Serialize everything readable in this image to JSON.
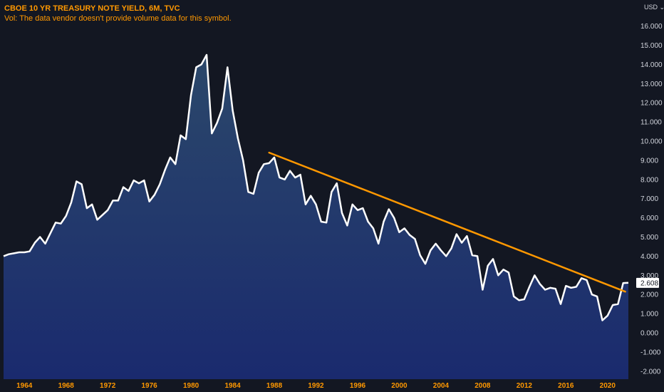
{
  "header": {
    "title": "CBOE 10 YR TREASURY NOTE YIELD, 6M, TVC",
    "volume_note": "Vol: The data vendor doesn't provide volume data for this symbol."
  },
  "price_scale": {
    "currency": "USD",
    "last_value_label": "2.608"
  },
  "colors": {
    "background": "#131722",
    "line": "#ffffff",
    "trendline": "#ff9800",
    "area_top": "#2c4a6e",
    "area_bottom": "#1a2a6e",
    "axis_text": "#d1d4dc",
    "time_labels": "#ff9800"
  },
  "chart_data": {
    "type": "area",
    "title": "CBOE 10 YR TREASURY NOTE YIELD, 6M, TVC",
    "xlabel": "",
    "ylabel": "",
    "ylim": [
      -2.25,
      17.1
    ],
    "xlim": [
      1962.0,
      2022.0
    ],
    "y_ticks": [
      "16.000",
      "15.000",
      "14.000",
      "13.000",
      "12.000",
      "11.000",
      "10.000",
      "9.000",
      "8.000",
      "7.000",
      "6.000",
      "5.000",
      "4.000",
      "3.000",
      "2.000",
      "1.000",
      "0.000",
      "-1.000",
      "-2.000"
    ],
    "x_ticks": [
      "1964",
      "1968",
      "1972",
      "1976",
      "1980",
      "1984",
      "1988",
      "1992",
      "1996",
      "2000",
      "2004",
      "2008",
      "2012",
      "2016",
      "2020"
    ],
    "grid": false,
    "series": [
      {
        "x": [
          1962.0,
          1962.5,
          1963.0,
          1963.5,
          1964.0,
          1964.5,
          1965.0,
          1965.5,
          1966.0,
          1966.5,
          1967.0,
          1967.5,
          1968.0,
          1968.5,
          1969.0,
          1969.5,
          1970.0,
          1970.5,
          1971.0,
          1971.5,
          1972.0,
          1972.5,
          1973.0,
          1973.5,
          1974.0,
          1974.5,
          1975.0,
          1975.5,
          1976.0,
          1976.5,
          1977.0,
          1977.5,
          1978.0,
          1978.5,
          1979.0,
          1979.5,
          1980.0,
          1980.5,
          1981.0,
          1981.5,
          1982.0,
          1982.5,
          1983.0,
          1983.5,
          1984.0,
          1984.5,
          1985.0,
          1985.5,
          1986.0,
          1986.5,
          1987.0,
          1987.5,
          1988.0,
          1988.5,
          1989.0,
          1989.5,
          1990.0,
          1990.5,
          1991.0,
          1991.5,
          1992.0,
          1992.5,
          1993.0,
          1993.5,
          1994.0,
          1994.5,
          1995.0,
          1995.5,
          1996.0,
          1996.5,
          1997.0,
          1997.5,
          1998.0,
          1998.5,
          1999.0,
          1999.5,
          2000.0,
          2000.5,
          2001.0,
          2001.5,
          2002.0,
          2002.5,
          2003.0,
          2003.5,
          2004.0,
          2004.5,
          2005.0,
          2005.5,
          2006.0,
          2006.5,
          2007.0,
          2007.5,
          2008.0,
          2008.5,
          2009.0,
          2009.5,
          2010.0,
          2010.5,
          2011.0,
          2011.5,
          2012.0,
          2012.5,
          2013.0,
          2013.5,
          2014.0,
          2014.5,
          2015.0,
          2015.5,
          2016.0,
          2016.5,
          2017.0,
          2017.5,
          2018.0,
          2018.5,
          2019.0,
          2019.5,
          2020.0,
          2020.5,
          2021.0,
          2021.5,
          2022.0
        ],
        "values": [
          4.0,
          4.1,
          4.15,
          4.2,
          4.2,
          4.25,
          4.7,
          5.0,
          4.65,
          5.2,
          5.75,
          5.7,
          6.1,
          6.8,
          7.9,
          7.75,
          6.5,
          6.7,
          5.9,
          6.15,
          6.4,
          6.9,
          6.9,
          7.6,
          7.4,
          7.95,
          7.8,
          7.95,
          6.85,
          7.2,
          7.75,
          8.5,
          9.15,
          8.8,
          10.3,
          10.1,
          12.4,
          13.85,
          14.0,
          14.5,
          10.4,
          10.95,
          11.7,
          13.85,
          11.6,
          10.15,
          9.0,
          7.35,
          7.25,
          8.35,
          8.8,
          8.85,
          9.15,
          8.1,
          8.0,
          8.45,
          8.1,
          8.25,
          6.7,
          7.15,
          6.7,
          5.8,
          5.75,
          7.35,
          7.8,
          6.25,
          5.6,
          6.7,
          6.4,
          6.5,
          5.8,
          5.45,
          4.65,
          5.8,
          6.45,
          6.0,
          5.25,
          5.45,
          5.1,
          4.9,
          4.05,
          3.6,
          4.3,
          4.65,
          4.3,
          4.0,
          4.4,
          5.15,
          4.7,
          5.05,
          4.05,
          4.0,
          2.25,
          3.5,
          3.85,
          3.0,
          3.3,
          3.15,
          1.9,
          1.7,
          1.75,
          2.4,
          3.0,
          2.55,
          2.25,
          2.35,
          2.3,
          1.5,
          2.45,
          2.35,
          2.4,
          2.85,
          2.75,
          2.0,
          1.9,
          0.65,
          0.9,
          1.45,
          1.5,
          2.6,
          2.608
        ]
      }
    ],
    "trendline": {
      "x": [
        1987.5,
        2021.7
      ],
      "values": [
        9.4,
        2.15
      ]
    }
  }
}
